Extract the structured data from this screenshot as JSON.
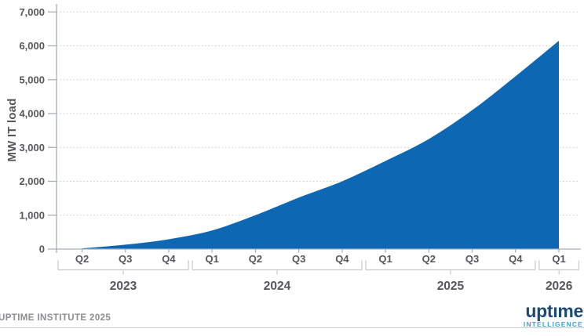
{
  "chart_data": {
    "type": "area",
    "title": "",
    "ylabel": "MW IT load",
    "x": [
      "Q2 2023",
      "Q3 2023",
      "Q4 2023",
      "Q1 2024",
      "Q2 2024",
      "Q3 2024",
      "Q4 2024",
      "Q1 2025",
      "Q2 2025",
      "Q3 2025",
      "Q4 2025",
      "Q1 2026"
    ],
    "quarter_labels": [
      "Q2",
      "Q3",
      "Q4",
      "Q1",
      "Q2",
      "Q3",
      "Q4",
      "Q1",
      "Q2",
      "Q3",
      "Q4",
      "Q1"
    ],
    "year_groups": [
      {
        "label": "2023",
        "count": 3
      },
      {
        "label": "2024",
        "count": 4
      },
      {
        "label": "2025",
        "count": 4
      },
      {
        "label": "2026",
        "count": 1
      }
    ],
    "values": [
      20,
      130,
      290,
      550,
      1000,
      1520,
      2000,
      2600,
      3250,
      4100,
      5100,
      6150
    ],
    "ylim": [
      0,
      7000
    ],
    "ytick_interval": 1000,
    "ytick_labels": [
      "0",
      "1,000",
      "2,000",
      "3,000",
      "4,000",
      "5,000",
      "6,000",
      "7,000"
    ],
    "grid": "horizontal-dotted",
    "legend": "none"
  },
  "footer": {
    "credit": "UPTIME INSTITUTE 2025"
  },
  "logo": {
    "wordmark": "uptıme",
    "tagline": "INTELLIGENCE"
  },
  "colors": {
    "area": "#0e67b2",
    "axis": "#a7aebb",
    "grid": "#c7c9cb",
    "bracket": "#c7c9cb",
    "label": "#55575b",
    "footer_text": "#8b8d90",
    "footer_rule": "#cbcdcf",
    "logo_navy": "#1a4a77",
    "logo_blue": "#3aa1d9"
  }
}
